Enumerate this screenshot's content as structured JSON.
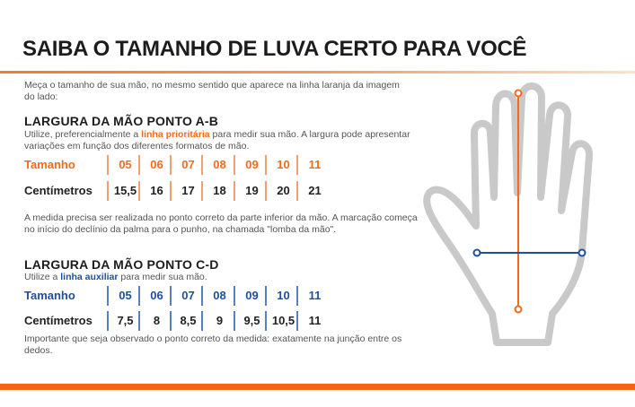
{
  "title": "SAIBA O TAMANHO DE LUVA CERTO PARA VOCÊ",
  "intro": "Meça o tamanho de sua mão, no mesmo sentido que aparece na linha laranja da imagem do lado:",
  "section_ab": {
    "heading": "LARGURA DA MÃO PONTO A-B",
    "desc_before": "Utilize, preferencialmente a ",
    "desc_highlight": "linha prioritária",
    "desc_after": " para medir sua mão. A largura pode apresentar variações em função dos diferentes formatos de mão.",
    "size_label": "Tamanho",
    "cm_label": "Centímetros",
    "sizes": [
      "05",
      "06",
      "07",
      "08",
      "09",
      "10",
      "11"
    ],
    "cm": [
      "15,5",
      "16",
      "17",
      "18",
      "19",
      "20",
      "21"
    ],
    "note": "A medida precisa ser realizada no ponto correto da parte inferior da mão. A marcação começa no início do declínio da palma para o punho, na chamada \"lomba da mão\"."
  },
  "section_cd": {
    "heading": "LARGURA DA MÃO PONTO C-D",
    "desc_before": "Utilize a ",
    "desc_highlight": "linha auxiliar",
    "desc_after": " para medir sua mão.",
    "size_label": "Tamanho",
    "cm_label": "Centímetros",
    "sizes": [
      "05",
      "06",
      "07",
      "08",
      "09",
      "10",
      "11"
    ],
    "cm": [
      "7,5",
      "8",
      "8,5",
      "9",
      "9,5",
      "10,5",
      "11"
    ],
    "note": "Importante que seja observado o ponto correto da medida: exatamente na junção entre os dedos."
  },
  "colors": {
    "orange": "#f26b1d",
    "blue": "#1f4f9e",
    "hand_outline": "#c9c9c9"
  },
  "icons": {
    "hand": "hand-outline-icon"
  }
}
